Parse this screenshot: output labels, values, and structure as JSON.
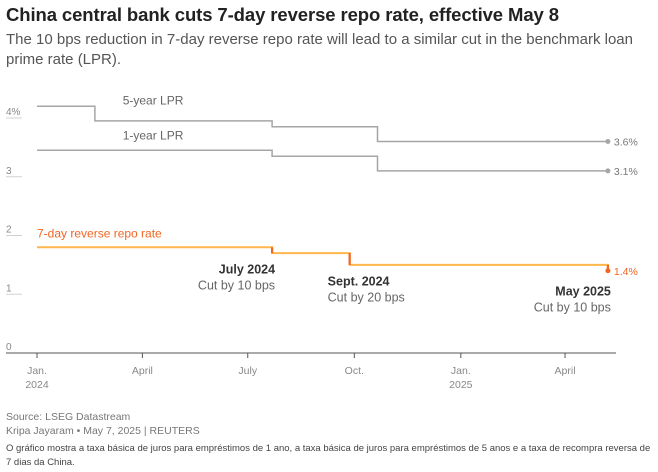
{
  "header": {
    "title": "China central bank cuts 7-day reverse repo rate, effective May 8",
    "subtitle": "The 10 bps reduction in 7-day reverse repo rate will lead to a similar cut in the benchmark loan prime rate (LPR)."
  },
  "footer": {
    "source": "Source: LSEG Datastream",
    "byline": "Kripa Jayaram • May 7, 2025 | REUTERS",
    "note": "O gráfico mostra a taxa básica de juros para empréstimos de 1 ano, a taxa básica de juros para empréstimos de 5 anos e a taxa de recompra reversa de 7 dias da China."
  },
  "colors": {
    "lpr": "#a6a6a6",
    "repo": "#ffb74d",
    "repo_cut": "#f26522",
    "repo_label": "#f26522",
    "axis": "#555555",
    "tick_text": "#888888"
  },
  "chart_data": {
    "type": "line",
    "x_axis": {
      "type": "date",
      "range": [
        "2024-01-01",
        "2025-05-15"
      ],
      "ticks": [
        {
          "date": "2024-01-01",
          "label": "Jan.",
          "label2": "2024"
        },
        {
          "date": "2024-04-01",
          "label": "April",
          "label2": ""
        },
        {
          "date": "2024-07-01",
          "label": "July",
          "label2": ""
        },
        {
          "date": "2024-10-01",
          "label": "Oct.",
          "label2": ""
        },
        {
          "date": "2025-01-01",
          "label": "Jan.",
          "label2": "2025"
        },
        {
          "date": "2025-04-01",
          "label": "April",
          "label2": ""
        }
      ]
    },
    "y_axis": {
      "range": [
        0,
        4
      ],
      "ticks": [
        {
          "value": 4,
          "label": "4%"
        },
        {
          "value": 3,
          "label": "3"
        },
        {
          "value": 2,
          "label": "2"
        },
        {
          "value": 1,
          "label": "1"
        },
        {
          "value": 0,
          "label": "0"
        }
      ]
    },
    "series": [
      {
        "name": "5-year LPR",
        "kind": "lpr",
        "end_label": "3.6%",
        "points": [
          [
            "2024-01-01",
            4.2
          ],
          [
            "2024-02-20",
            4.2
          ],
          [
            "2024-02-20",
            3.95
          ],
          [
            "2024-07-22",
            3.95
          ],
          [
            "2024-07-22",
            3.85
          ],
          [
            "2024-10-21",
            3.85
          ],
          [
            "2024-10-21",
            3.6
          ],
          [
            "2025-05-08",
            3.6
          ]
        ]
      },
      {
        "name": "1-year LPR",
        "kind": "lpr",
        "end_label": "3.1%",
        "points": [
          [
            "2024-01-01",
            3.45
          ],
          [
            "2024-07-22",
            3.45
          ],
          [
            "2024-07-22",
            3.35
          ],
          [
            "2024-10-21",
            3.35
          ],
          [
            "2024-10-21",
            3.1
          ],
          [
            "2025-05-08",
            3.1
          ]
        ]
      },
      {
        "name": "7-day reverse repo rate",
        "kind": "repo",
        "end_label": "1.4%",
        "points": [
          [
            "2024-01-01",
            1.8
          ],
          [
            "2024-07-22",
            1.8
          ],
          [
            "2024-07-22",
            1.7
          ],
          [
            "2024-09-27",
            1.7
          ],
          [
            "2024-09-27",
            1.5
          ],
          [
            "2025-05-08",
            1.5
          ],
          [
            "2025-05-08",
            1.4
          ]
        ],
        "cuts": [
          {
            "date": "2024-07-22",
            "from": 1.8,
            "to": 1.7
          },
          {
            "date": "2024-09-27",
            "from": 1.7,
            "to": 1.5
          },
          {
            "date": "2025-05-08",
            "from": 1.5,
            "to": 1.4
          }
        ]
      }
    ],
    "annotations": [
      {
        "title": "July 2024",
        "text": "Cut by 10 bps",
        "date": "2024-07-22",
        "y": 1.35,
        "anchor": "end"
      },
      {
        "title": "Sept. 2024",
        "text": "Cut by 20 bps",
        "date": "2024-09-27",
        "y": 1.15,
        "anchor": "start"
      },
      {
        "title": "May 2025",
        "text": "Cut by 10 bps",
        "date": "2025-05-08",
        "y": 0.98,
        "anchor": "end"
      }
    ]
  }
}
